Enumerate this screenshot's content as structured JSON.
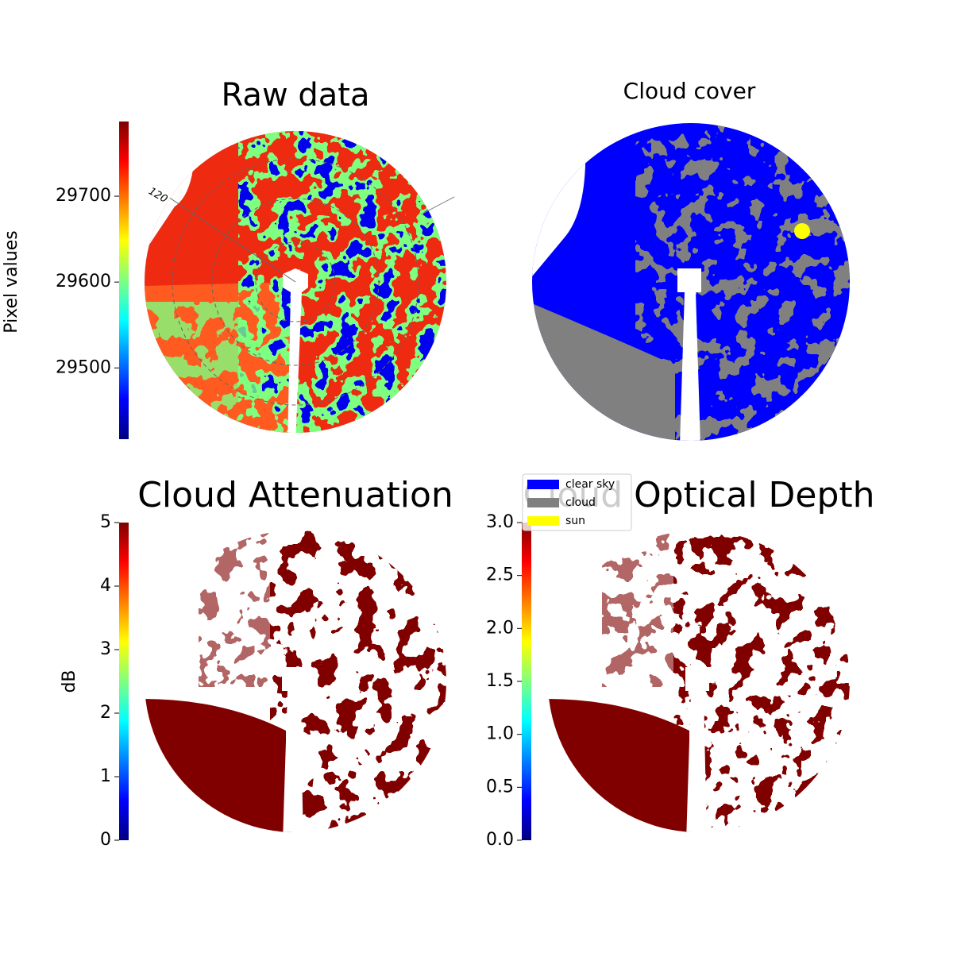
{
  "chart_data": [
    {
      "type": "image",
      "title": "Raw data",
      "colorbar_label": "Pixel values",
      "ylim": [
        29417,
        29787
      ],
      "yticks": [
        29500,
        29600,
        29700
      ],
      "colormap": "jet",
      "annotations": [
        "120"
      ]
    },
    {
      "type": "image",
      "title": "Cloud cover",
      "legend": [
        {
          "name": "clear sky",
          "color": "#0000ff"
        },
        {
          "name": "cloud",
          "color": "#808080"
        },
        {
          "name": "sun",
          "color": "#ffff00"
        }
      ]
    },
    {
      "type": "image",
      "title": "Cloud Attenuation",
      "colorbar_label": "dB",
      "ylim": [
        0,
        5
      ],
      "yticks": [
        0,
        1,
        2,
        3,
        4,
        5
      ],
      "colormap": "jet"
    },
    {
      "type": "image",
      "title": "Cloud Optical Depth",
      "ylim": [
        0,
        3
      ],
      "yticks": [
        {
          "value": 0,
          "label": "0.0"
        },
        {
          "value": 0.5,
          "label": "0.5"
        },
        {
          "value": 1,
          "label": "1.0"
        },
        {
          "value": 1.5,
          "label": "1.5"
        },
        {
          "value": 2,
          "label": "2.0"
        },
        {
          "value": 2.5,
          "label": "2.5"
        },
        {
          "value": 3,
          "label": "3.0"
        }
      ],
      "colormap": "jet"
    }
  ]
}
